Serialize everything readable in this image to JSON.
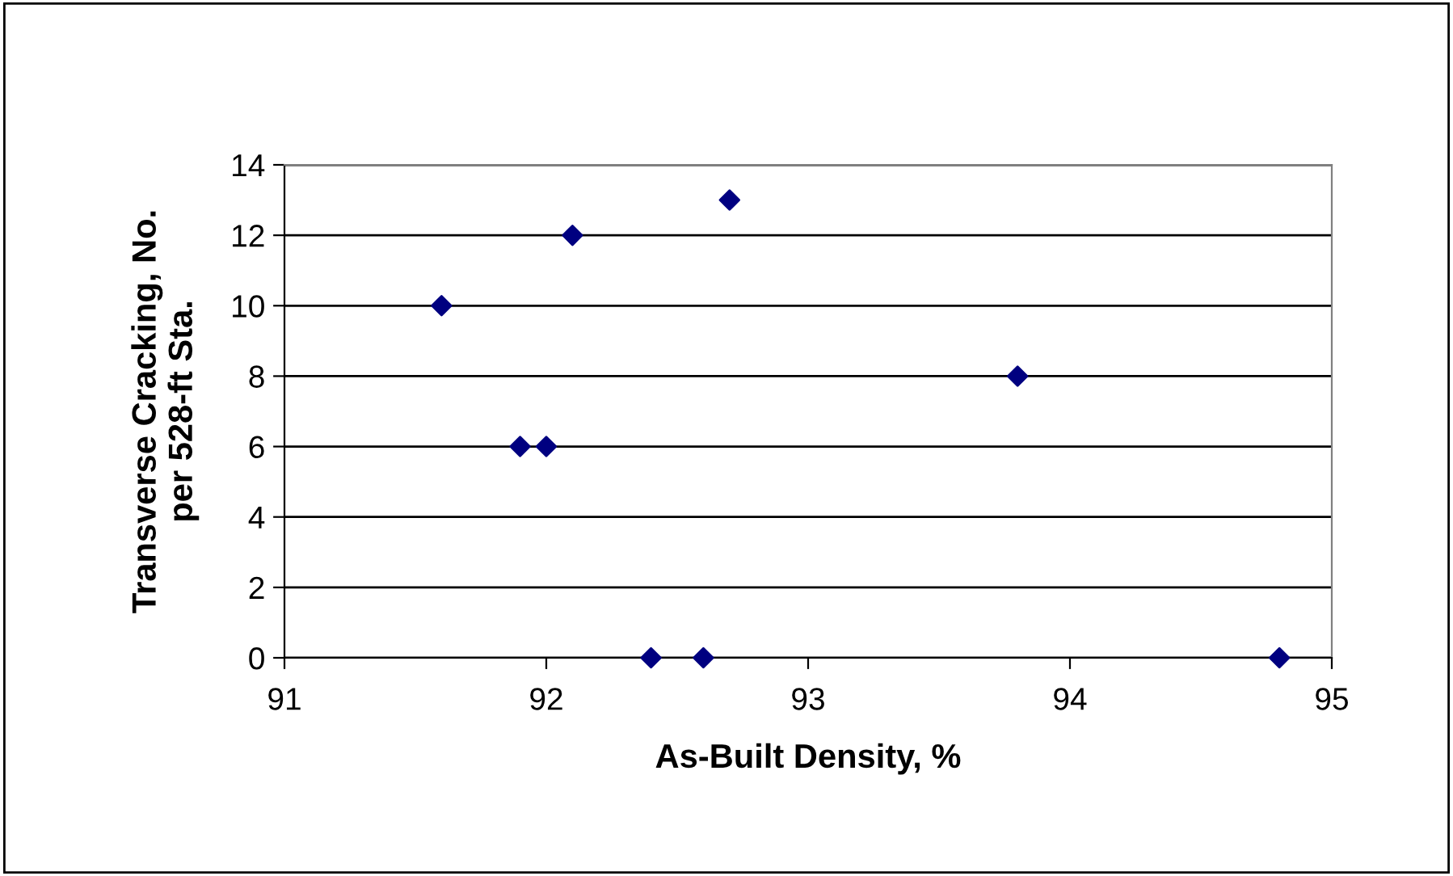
{
  "chart_data": {
    "type": "scatter",
    "xlabel": "As-Built Density, %",
    "ylabel": "Transverse Cracking, No.\nper 528-ft Sta.",
    "x": [
      91.6,
      92.1,
      92.7,
      91.9,
      92.0,
      93.8,
      92.4,
      92.6,
      94.8
    ],
    "series": [
      {
        "color": "#000080",
        "values": [
          10,
          12,
          13,
          6,
          6,
          8,
          0,
          0,
          0
        ]
      }
    ],
    "xlim": [
      91,
      95
    ],
    "xticks": [
      91,
      92,
      93,
      94,
      95
    ],
    "ylim": [
      0,
      14
    ],
    "yticks": [
      0,
      2,
      4,
      6,
      8,
      10,
      12,
      14
    ],
    "grid": "y",
    "marker": "diamond",
    "legend": false
  }
}
